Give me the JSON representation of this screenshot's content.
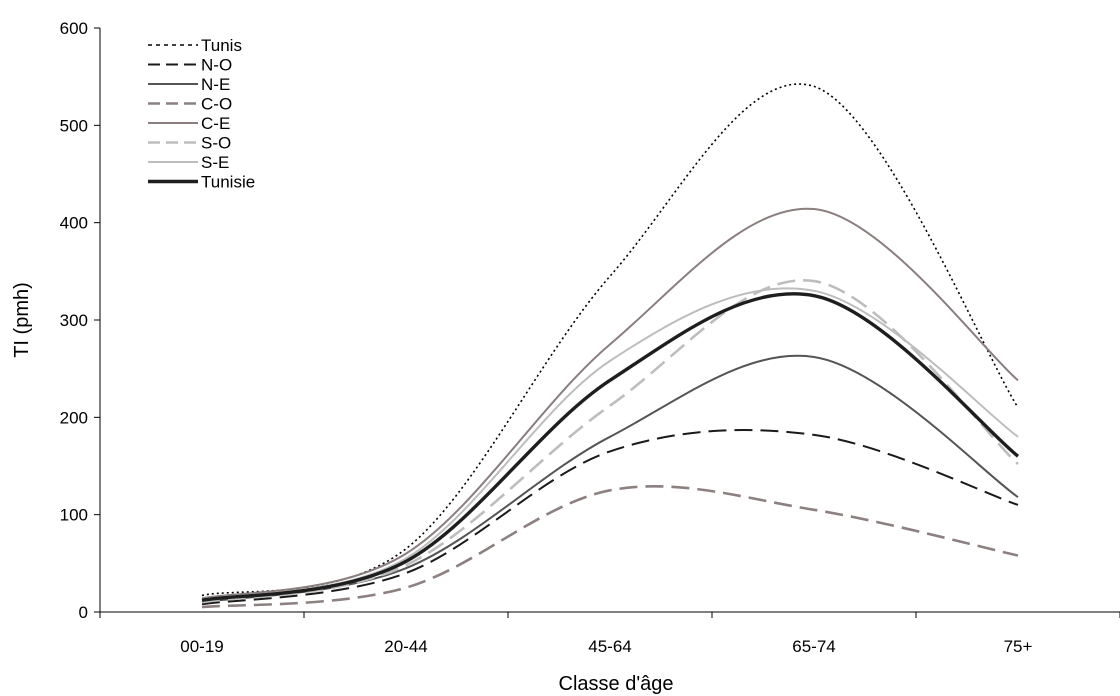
{
  "chart_data": {
    "type": "line",
    "xlabel": "Classe d'âge",
    "ylabel": "TI (pmh)",
    "categories": [
      "00-19",
      "20-44",
      "45-64",
      "65-74",
      "75+"
    ],
    "ylim": [
      0,
      600
    ],
    "yticks": [
      0,
      100,
      200,
      300,
      400,
      500,
      600
    ],
    "grid": false,
    "legend_position": "top-left",
    "series": [
      {
        "name": "Tunis",
        "values": [
          17,
          65,
          345,
          540,
          210
        ],
        "color": "#000000",
        "style": "dotted"
      },
      {
        "name": "N-O",
        "values": [
          8,
          40,
          165,
          182,
          110
        ],
        "color": "#1a1a1a",
        "style": "dashed"
      },
      {
        "name": "N-E",
        "values": [
          10,
          45,
          180,
          262,
          118
        ],
        "color": "#555555",
        "style": "solid"
      },
      {
        "name": "C-O",
        "values": [
          5,
          25,
          125,
          105,
          58
        ],
        "color": "#8c8080",
        "style": "dashed-thick"
      },
      {
        "name": "C-E",
        "values": [
          14,
          60,
          275,
          414,
          238
        ],
        "color": "#8a7e7e",
        "style": "solid"
      },
      {
        "name": "S-O",
        "values": [
          10,
          48,
          212,
          340,
          152
        ],
        "color": "#bdbdbd",
        "style": "dashed-thick"
      },
      {
        "name": "S-E",
        "values": [
          13,
          55,
          258,
          330,
          180
        ],
        "color": "#bdbdbd",
        "style": "solid"
      },
      {
        "name": "Tunisie",
        "values": [
          12,
          52,
          238,
          325,
          160
        ],
        "color": "#1e1e1e",
        "style": "solid-thick"
      }
    ]
  }
}
